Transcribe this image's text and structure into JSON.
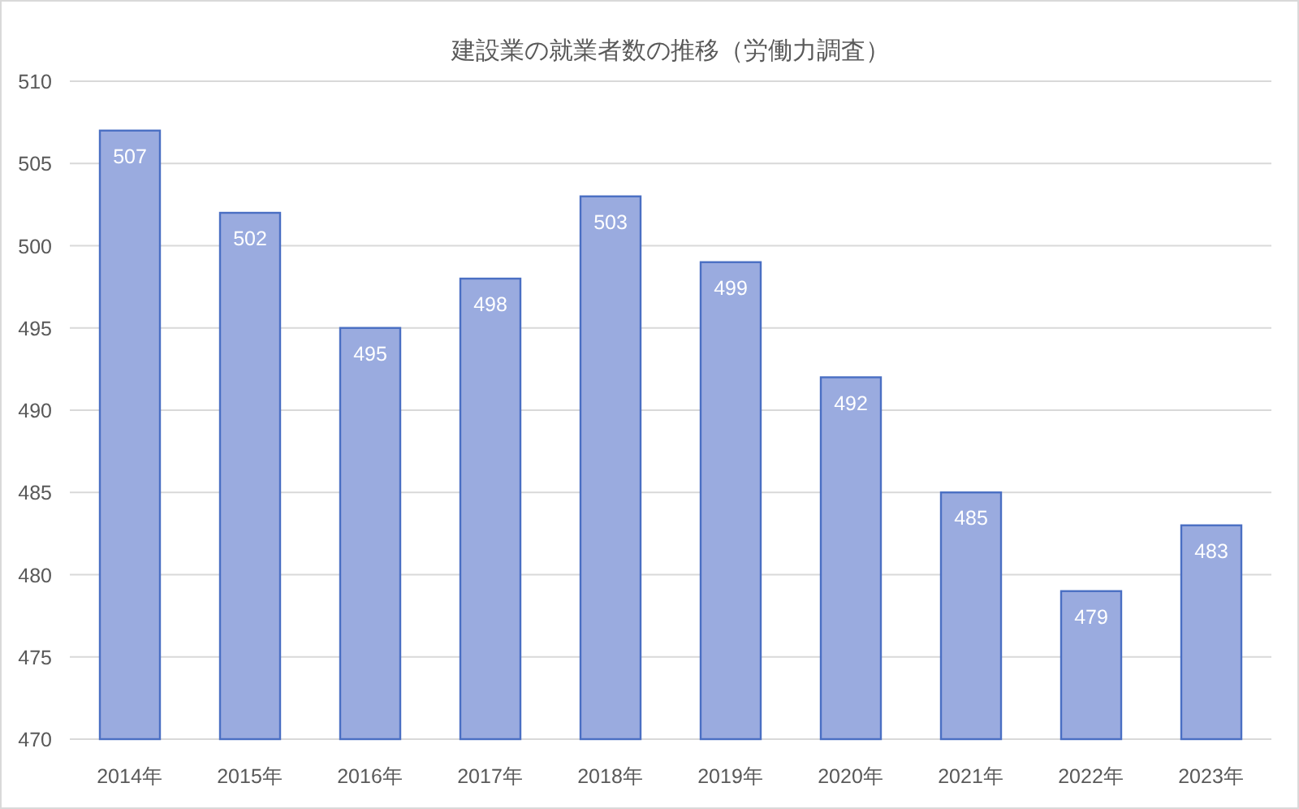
{
  "chart_data": {
    "type": "bar",
    "title": "建設業の就業者数の推移（労働力調査）",
    "categories": [
      "2014年",
      "2015年",
      "2016年",
      "2017年",
      "2018年",
      "2019年",
      "2020年",
      "2021年",
      "2022年",
      "2023年"
    ],
    "values": [
      507,
      502,
      495,
      498,
      503,
      499,
      492,
      485,
      479,
      483
    ],
    "color": "#9aabdf",
    "ylim": [
      470,
      510
    ],
    "yticks": [
      470,
      475,
      480,
      485,
      490,
      495,
      500,
      505,
      510
    ],
    "grid": "y",
    "data_labels": true
  }
}
